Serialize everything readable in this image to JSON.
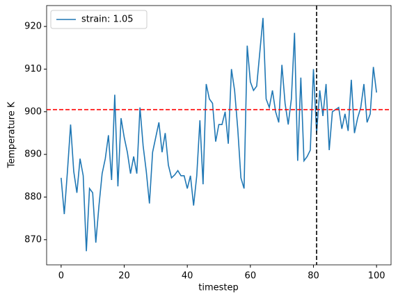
{
  "chart_data": {
    "type": "line",
    "xlabel": "timestep",
    "ylabel": "Temperature K",
    "x": [
      0,
      1,
      2,
      3,
      4,
      5,
      6,
      7,
      8,
      9,
      10,
      11,
      12,
      13,
      14,
      15,
      16,
      17,
      18,
      19,
      20,
      21,
      22,
      23,
      24,
      25,
      26,
      27,
      28,
      29,
      30,
      31,
      32,
      33,
      34,
      35,
      36,
      37,
      38,
      39,
      40,
      41,
      42,
      43,
      44,
      45,
      46,
      47,
      48,
      49,
      50,
      51,
      52,
      53,
      54,
      55,
      56,
      57,
      58,
      59,
      60,
      61,
      62,
      63,
      64,
      65,
      66,
      67,
      68,
      69,
      70,
      71,
      72,
      73,
      74,
      75,
      76,
      77,
      78,
      79,
      80,
      81,
      82,
      83,
      84,
      85,
      86,
      87,
      88,
      89,
      90,
      91,
      92,
      93,
      94,
      95,
      96,
      97,
      98,
      99,
      100
    ],
    "series": [
      {
        "name": "strain: 1.05",
        "color": "#1f77b4",
        "values": [
          884.5,
          876,
          886,
          897,
          886,
          881,
          889,
          885,
          867.3,
          882,
          881,
          869.3,
          878,
          885.5,
          889,
          894.5,
          884,
          904,
          882.5,
          898.5,
          894,
          890.5,
          885.5,
          889.5,
          885.5,
          901,
          892,
          886,
          878.5,
          890.5,
          894,
          897.5,
          890.5,
          895,
          887.5,
          884.5,
          885.2,
          886.2,
          885,
          885,
          882,
          885,
          878,
          885,
          898,
          883,
          906.5,
          903,
          902,
          893,
          897,
          897,
          900,
          892.5,
          910,
          905,
          896,
          884.5,
          882,
          915.5,
          907,
          905,
          906,
          914,
          922,
          903,
          901,
          905,
          900,
          897.5,
          911,
          902,
          897,
          903,
          918.5,
          888.5,
          908,
          888.5,
          889.5,
          891,
          910,
          895,
          905,
          899,
          906.5,
          891,
          900,
          900.5,
          901,
          896,
          899.5,
          895.5,
          907.5,
          895,
          898.5,
          901,
          906.5,
          897.5,
          899.5,
          910.5,
          904.5
        ]
      }
    ],
    "hlines": [
      {
        "value": 900.5,
        "color": "#ff0000"
      }
    ],
    "vlines": [
      {
        "value": 81,
        "color": "#000000"
      }
    ],
    "xlim": [
      -4.6,
      104.6
    ],
    "ylim": [
      864.1,
      924.9
    ],
    "xticks": [
      0,
      20,
      40,
      60,
      80,
      100
    ],
    "yticks": [
      870,
      880,
      890,
      900,
      910,
      920
    ],
    "legend": "upper left"
  }
}
